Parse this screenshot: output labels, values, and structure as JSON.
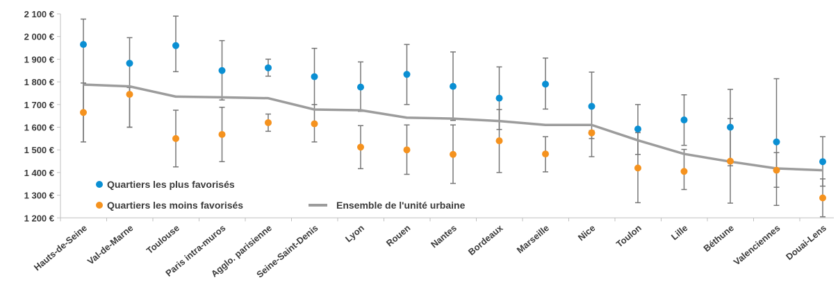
{
  "chart_data": {
    "type": "scatter",
    "categories": [
      "Hauts-de-Seine",
      "Val-de-Marne",
      "Toulouse",
      "Paris intra-muros",
      "Agglo. parisienne",
      "Seine-Saint-Denis",
      "Lyon",
      "Rouen",
      "Nantes",
      "Bordeaux",
      "Marseille",
      "Nice",
      "Toulon",
      "Lille",
      "Béthune",
      "Valenciennes",
      "Douai-Lens"
    ],
    "ylim": [
      1200,
      2100
    ],
    "yticks": [
      1200,
      1300,
      1400,
      1500,
      1600,
      1700,
      1800,
      1900,
      2000,
      2100
    ],
    "ytick_labels": [
      "1 200 €",
      "1 300 €",
      "1 400 €",
      "1 500 €",
      "1 600 €",
      "1 700 €",
      "1 800 €",
      "1 900 €",
      "2 000 €",
      "2 100 €"
    ],
    "grid": false,
    "legend_position": "bottom-left",
    "series": [
      {
        "name": "Quartiers les plus favorisés",
        "color": "#0a8fd3",
        "marker": "dot",
        "values": [
          1965,
          1882,
          1960,
          1850,
          1862,
          1823,
          1777,
          1833,
          1780,
          1728,
          1790,
          1692,
          1592,
          1632,
          1600,
          1535,
          1448
        ],
        "error_low": [
          1535,
          1600,
          1845,
          1720,
          1825,
          1700,
          1670,
          1700,
          1630,
          1590,
          1680,
          1550,
          1480,
          1520,
          1430,
          1335,
          1340
        ],
        "error_high": [
          2077,
          1995,
          2090,
          1982,
          1900,
          1948,
          1888,
          1965,
          1932,
          1866,
          1905,
          1843,
          1700,
          1743,
          1767,
          1814,
          1558
        ]
      },
      {
        "name": "Quartiers les moins favorisés",
        "color": "#f5921e",
        "marker": "dot",
        "values": [
          1665,
          1745,
          1550,
          1568,
          1620,
          1615,
          1512,
          1500,
          1480,
          1540,
          1482,
          1575,
          1420,
          1405,
          1450,
          1410,
          1288
        ],
        "error_low": [
          1535,
          1600,
          1425,
          1448,
          1582,
          1535,
          1417,
          1392,
          1352,
          1400,
          1403,
          1470,
          1267,
          1325,
          1265,
          1255,
          1205
        ],
        "error_high": [
          1795,
          1775,
          1675,
          1688,
          1658,
          1700,
          1607,
          1610,
          1610,
          1678,
          1558,
          1585,
          1576,
          1502,
          1638,
          1488,
          1372
        ]
      },
      {
        "name": "Ensemble de l'unité urbaine",
        "color": "#9c9c9c",
        "marker": "line",
        "values": [
          1788,
          1780,
          1735,
          1732,
          1728,
          1678,
          1675,
          1642,
          1638,
          1627,
          1610,
          1610,
          1542,
          1482,
          1448,
          1418,
          1410
        ]
      }
    ]
  }
}
